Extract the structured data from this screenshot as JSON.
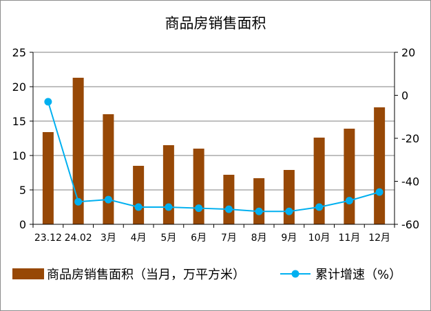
{
  "chart_data": {
    "type": "bar+line",
    "title": "商品房销售面积",
    "categories": [
      "23.12",
      "24.02",
      "3月",
      "4月",
      "5月",
      "6月",
      "7月",
      "8月",
      "9月",
      "10月",
      "11月",
      "12月"
    ],
    "y_left": {
      "ylim": [
        0,
        25
      ],
      "ticks": [
        "0",
        "5",
        "10",
        "15",
        "20",
        "25"
      ]
    },
    "y_right": {
      "ylim": [
        -60,
        20
      ],
      "ticks": [
        "-60",
        "-40",
        "-20",
        "0",
        "20"
      ]
    },
    "grid": true,
    "legend_position": "bottom",
    "series": [
      {
        "name": "商品房销售面积（当月，万平方米）",
        "type": "bar",
        "axis": "left",
        "color": "#974806",
        "values": [
          13.4,
          21.3,
          16.0,
          8.5,
          11.5,
          11.0,
          7.2,
          6.7,
          7.9,
          12.6,
          13.9,
          17.0
        ]
      },
      {
        "name": "累计增速（%）",
        "type": "line",
        "axis": "right",
        "color": "#00b0f0",
        "values": [
          -3.0,
          -49.5,
          -48.5,
          -52.0,
          -52.0,
          -52.5,
          -53.0,
          -54.0,
          -54.0,
          -52.0,
          -49.0,
          -45.0
        ]
      }
    ]
  }
}
